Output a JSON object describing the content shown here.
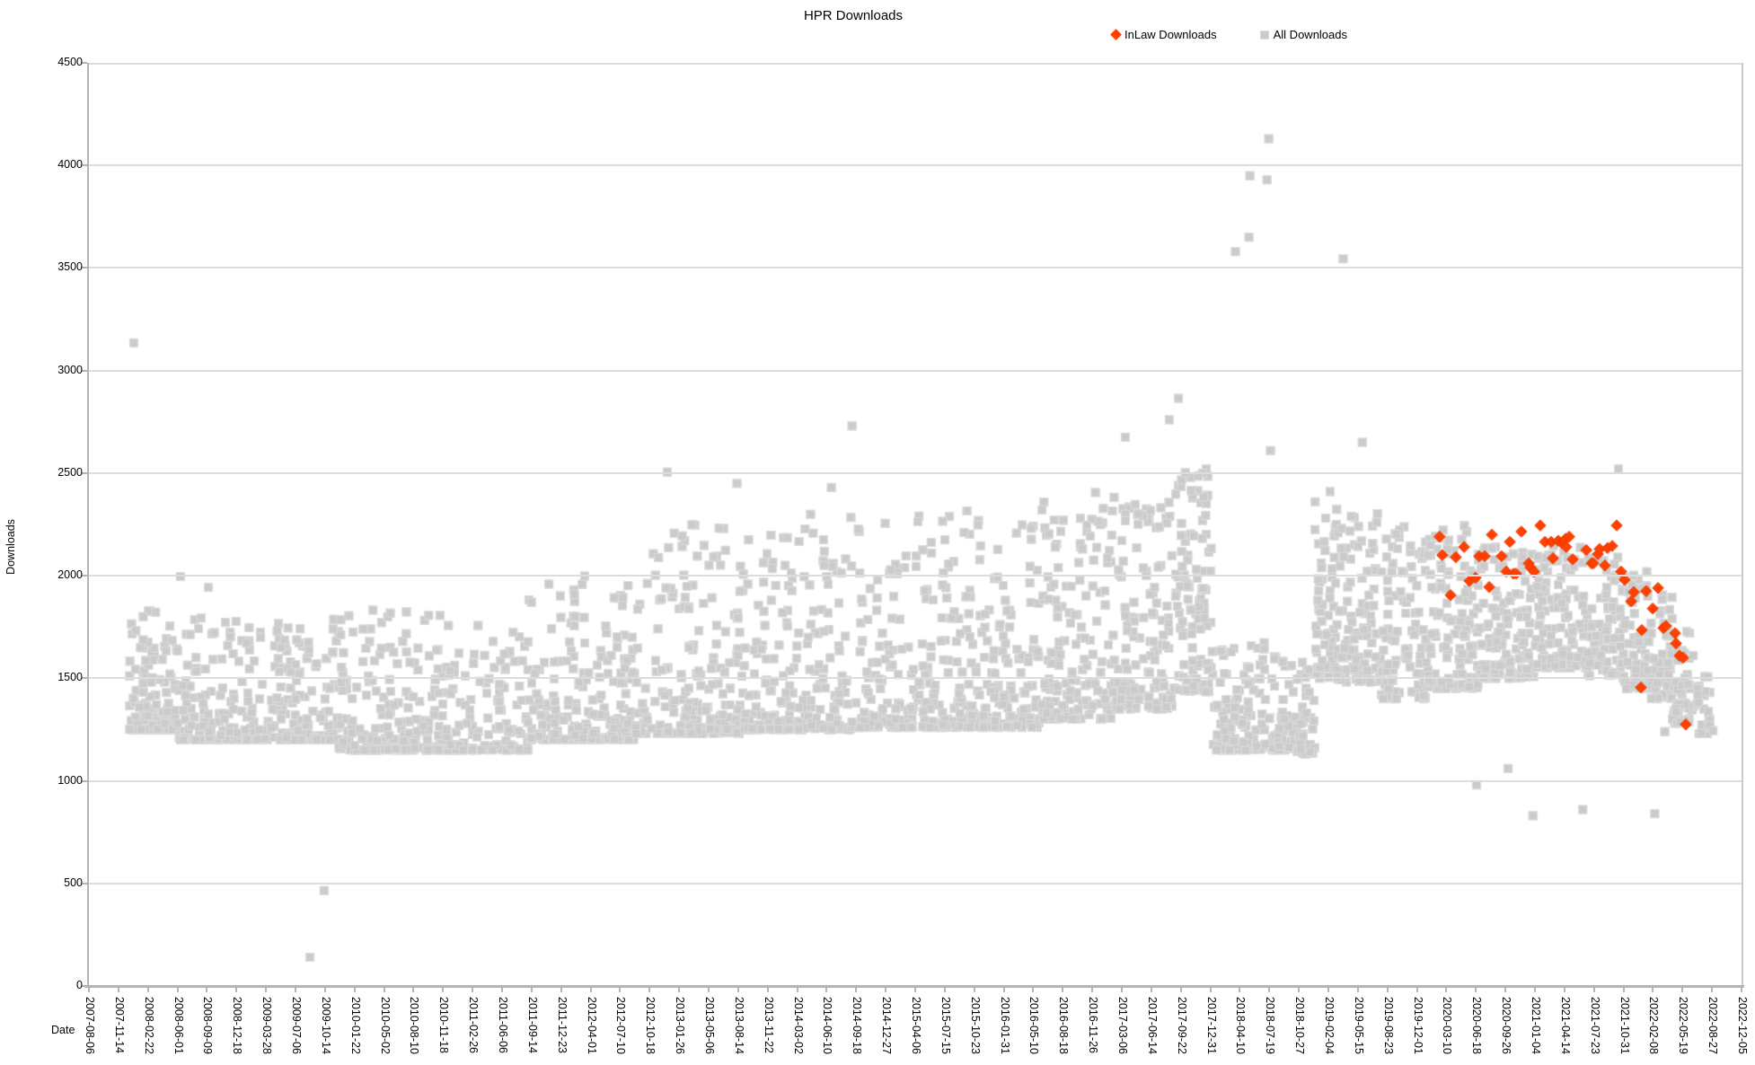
{
  "title": "HPR Downloads",
  "axis_titles": {
    "x": "Date",
    "y": "Downloads"
  },
  "colors": {
    "inlaw": "#ff4000",
    "inlaw_stroke": "#e83a00",
    "all": "#cbcbcb",
    "all_stroke": "#dddddd",
    "gridline": "#dcdcdc",
    "axis": "#b4b4b4",
    "text": "#000000"
  },
  "chart_data": {
    "type": "scatter",
    "title": "HPR Downloads",
    "xlabel": "Date",
    "ylabel": "Downloads",
    "grid": "horizontal",
    "legend_position": "top-right",
    "axes": {
      "x_min": "2007-08-06",
      "x_max": "2022-12-05",
      "y_min": 0,
      "y_max": 4500,
      "y_ticks": [
        0,
        500,
        1000,
        1500,
        2000,
        2500,
        3000,
        3500,
        4000,
        4500
      ],
      "x_ticks": [
        "2007-08-06",
        "2007-11-14",
        "2008-02-22",
        "2008-06-01",
        "2008-09-09",
        "2008-12-18",
        "2009-03-28",
        "2009-07-06",
        "2009-10-14",
        "2010-01-22",
        "2010-05-02",
        "2010-08-10",
        "2010-11-18",
        "2011-02-26",
        "2011-06-06",
        "2011-09-14",
        "2011-12-23",
        "2012-04-01",
        "2012-07-10",
        "2012-10-18",
        "2013-01-26",
        "2013-05-06",
        "2013-08-14",
        "2013-11-22",
        "2014-03-02",
        "2014-06-10",
        "2014-09-18",
        "2014-12-27",
        "2015-04-06",
        "2015-07-15",
        "2015-10-23",
        "2016-01-31",
        "2016-05-10",
        "2016-08-18",
        "2016-11-26",
        "2017-03-06",
        "2017-06-14",
        "2017-09-22",
        "2017-12-31",
        "2018-04-10",
        "2018-07-19",
        "2018-10-27",
        "2019-02-04",
        "2019-05-15",
        "2019-08-23",
        "2019-12-01",
        "2020-03-10",
        "2020-06-18",
        "2020-09-26",
        "2021-01-04",
        "2021-04-14",
        "2021-07-23",
        "2021-10-31",
        "2022-02-08",
        "2022-05-19",
        "2022-08-27",
        "2022-12-05"
      ]
    },
    "series": [
      {
        "name": "All Downloads",
        "marker": "square",
        "color": "#cbcbcb",
        "note": "dense daily scatter; cloud approximated by banded profile plus explicit visible outliers",
        "cloud_profile": [
          {
            "from": "2007-12-20",
            "to": "2008-06-01",
            "n": 110,
            "low": 1250,
            "high": 1830,
            "k": 2.6
          },
          {
            "from": "2008-06-01",
            "to": "2009-12-01",
            "n": 300,
            "low": 1200,
            "high": 1800,
            "k": 2.8
          },
          {
            "from": "2009-12-01",
            "to": "2011-09-01",
            "n": 340,
            "low": 1150,
            "high": 1840,
            "k": 2.8
          },
          {
            "from": "2011-09-01",
            "to": "2012-09-01",
            "n": 200,
            "low": 1200,
            "high": 2000,
            "k": 2.8
          },
          {
            "from": "2012-09-01",
            "to": "2013-09-01",
            "n": 210,
            "low": 1230,
            "high": 2250,
            "k": 2.8
          },
          {
            "from": "2013-09-01",
            "to": "2014-09-01",
            "n": 210,
            "low": 1250,
            "high": 2300,
            "k": 2.7
          },
          {
            "from": "2014-09-01",
            "to": "2015-09-01",
            "n": 210,
            "low": 1260,
            "high": 2300,
            "k": 2.6
          },
          {
            "from": "2015-09-01",
            "to": "2016-06-01",
            "n": 170,
            "low": 1260,
            "high": 2350,
            "k": 2.6
          },
          {
            "from": "2016-06-01",
            "to": "2017-02-01",
            "n": 160,
            "low": 1300,
            "high": 2450,
            "k": 2.1
          },
          {
            "from": "2017-02-01",
            "to": "2017-09-01",
            "n": 140,
            "low": 1350,
            "high": 2400,
            "k": 2.2
          },
          {
            "from": "2017-09-01",
            "to": "2018-01-10",
            "n": 115,
            "low": 1430,
            "high": 2520,
            "k": 1.5
          },
          {
            "from": "2018-01-10",
            "to": "2018-10-20",
            "n": 170,
            "low": 1150,
            "high": 1680,
            "k": 2.3
          },
          {
            "from": "2018-10-20",
            "to": "2018-12-20",
            "n": 45,
            "low": 1130,
            "high": 1620,
            "k": 2.0
          },
          {
            "from": "2018-12-20",
            "to": "2019-03-01",
            "n": 60,
            "low": 1500,
            "high": 2380,
            "k": 1.6
          },
          {
            "from": "2019-03-01",
            "to": "2019-08-01",
            "n": 110,
            "low": 1480,
            "high": 2330,
            "k": 1.9
          },
          {
            "from": "2019-08-01",
            "to": "2020-01-01",
            "n": 110,
            "low": 1400,
            "high": 2250,
            "k": 1.9
          },
          {
            "from": "2020-01-01",
            "to": "2020-07-01",
            "n": 130,
            "low": 1450,
            "high": 2250,
            "k": 1.8
          },
          {
            "from": "2020-07-01",
            "to": "2021-01-01",
            "n": 130,
            "low": 1500,
            "high": 2150,
            "k": 1.8
          },
          {
            "from": "2021-01-01",
            "to": "2021-07-01",
            "n": 130,
            "low": 1550,
            "high": 2150,
            "k": 1.8
          },
          {
            "from": "2021-07-01",
            "to": "2021-11-01",
            "n": 90,
            "low": 1500,
            "high": 2100,
            "k": 1.8
          },
          {
            "from": "2021-11-01",
            "to": "2022-02-01",
            "n": 70,
            "low": 1450,
            "high": 2050,
            "k": 1.8
          },
          {
            "from": "2022-02-01",
            "to": "2022-04-15",
            "n": 55,
            "low": 1400,
            "high": 1950,
            "k": 1.8
          },
          {
            "from": "2022-04-15",
            "to": "2022-07-01",
            "n": 45,
            "low": 1280,
            "high": 1760,
            "k": 1.8
          },
          {
            "from": "2022-07-01",
            "to": "2022-08-25",
            "n": 22,
            "low": 1230,
            "high": 1540,
            "k": 1.8
          }
        ],
        "outlier_points": [
          [
            "2008-01-05",
            3135
          ],
          [
            "2008-06-11",
            1996
          ],
          [
            "2008-09-14",
            1943
          ],
          [
            "2009-08-24",
            140
          ],
          [
            "2009-10-11",
            465
          ],
          [
            "2012-12-17",
            2505
          ],
          [
            "2013-08-10",
            2450
          ],
          [
            "2014-06-26",
            2430
          ],
          [
            "2014-09-04",
            2730
          ],
          [
            "2017-03-18",
            2675
          ],
          [
            "2017-08-14",
            2760
          ],
          [
            "2017-09-14",
            2865
          ],
          [
            "2018-03-26",
            3580
          ],
          [
            "2018-05-11",
            3650
          ],
          [
            "2018-05-14",
            3950
          ],
          [
            "2018-07-11",
            3930
          ],
          [
            "2018-07-17",
            4130
          ],
          [
            "2018-07-23",
            2610
          ],
          [
            "2018-12-05",
            1140
          ],
          [
            "2019-02-10",
            2410
          ],
          [
            "2019-03-26",
            3545
          ],
          [
            "2019-05-30",
            2650
          ],
          [
            "2020-06-20",
            980
          ],
          [
            "2020-10-05",
            1060
          ],
          [
            "2020-12-28",
            830
          ],
          [
            "2021-06-15",
            860
          ],
          [
            "2021-10-14",
            2520
          ],
          [
            "2022-02-14",
            840
          ],
          [
            "2022-03-20",
            1240
          ],
          [
            "2022-08-20",
            1270
          ],
          [
            "2022-08-30",
            1245
          ]
        ]
      },
      {
        "name": "InLaw Downloads",
        "marker": "diamond",
        "color": "#ff4000",
        "points": [
          [
            "2020-02-16",
            2190
          ],
          [
            "2020-02-25",
            2100
          ],
          [
            "2020-03-24",
            1905
          ],
          [
            "2020-04-11",
            2090
          ],
          [
            "2020-05-09",
            2140
          ],
          [
            "2020-05-27",
            1975
          ],
          [
            "2020-06-17",
            1990
          ],
          [
            "2020-06-29",
            2095
          ],
          [
            "2020-07-18",
            2095
          ],
          [
            "2020-08-02",
            1945
          ],
          [
            "2020-08-11",
            2200
          ],
          [
            "2020-09-13",
            2095
          ],
          [
            "2020-09-29",
            2020
          ],
          [
            "2020-10-11",
            2165
          ],
          [
            "2020-10-23",
            2010
          ],
          [
            "2020-11-01",
            2010
          ],
          [
            "2020-11-19",
            2215
          ],
          [
            "2020-12-14",
            2060
          ],
          [
            "2020-12-20",
            2040
          ],
          [
            "2021-01-01",
            2020
          ],
          [
            "2021-01-22",
            2245
          ],
          [
            "2021-02-07",
            2165
          ],
          [
            "2021-02-28",
            2165
          ],
          [
            "2021-03-06",
            2085
          ],
          [
            "2021-03-24",
            2170
          ],
          [
            "2021-04-05",
            2160
          ],
          [
            "2021-04-18",
            2180
          ],
          [
            "2021-04-20",
            2140
          ],
          [
            "2021-04-30",
            2190
          ],
          [
            "2021-05-12",
            2080
          ],
          [
            "2021-06-27",
            2125
          ],
          [
            "2021-07-15",
            2060
          ],
          [
            "2021-07-21",
            2060
          ],
          [
            "2021-08-05",
            2105
          ],
          [
            "2021-08-11",
            2130
          ],
          [
            "2021-08-29",
            2050
          ],
          [
            "2021-09-07",
            2135
          ],
          [
            "2021-09-23",
            2145
          ],
          [
            "2021-10-08",
            2245
          ],
          [
            "2021-10-23",
            2020
          ],
          [
            "2021-11-04",
            1980
          ],
          [
            "2021-11-26",
            1875
          ],
          [
            "2021-12-05",
            1920
          ],
          [
            "2021-12-29",
            1455
          ],
          [
            "2022-01-01",
            1735
          ],
          [
            "2022-01-16",
            1925
          ],
          [
            "2022-02-07",
            1840
          ],
          [
            "2022-02-25",
            1940
          ],
          [
            "2022-03-15",
            1745
          ],
          [
            "2022-03-24",
            1755
          ],
          [
            "2022-04-24",
            1720
          ],
          [
            "2022-04-27",
            1670
          ],
          [
            "2022-05-09",
            1610
          ],
          [
            "2022-05-21",
            1600
          ],
          [
            "2022-05-30",
            1275
          ]
        ]
      }
    ]
  }
}
